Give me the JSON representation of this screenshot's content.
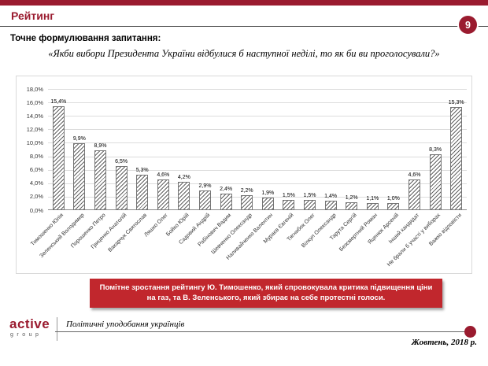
{
  "slide": {
    "title": "Рейтинг",
    "page_number": "9",
    "question_label": "Точне формулювання запитання:",
    "question_text": "«Якби вибори Президента України відбулися б наступної неділі, то як би ви проголосували?»",
    "callout": "Помітне зростання рейтингу Ю. Тимошенко, який спровокувала критика підвищення ціни на газ, та В. Зеленського, який збирає на себе протестні голоси.",
    "footer": {
      "logo_line1": "active",
      "logo_line2": "group",
      "tagline": "Політичні уподобання українців",
      "date": "Жовтень, 2018 р."
    },
    "colors": {
      "maroon": "#9A1B2F",
      "banner_red": "#C1272D"
    }
  },
  "chart_data": {
    "type": "bar",
    "title": "",
    "xlabel": "",
    "ylabel": "",
    "grid": true,
    "legend": false,
    "bar_style": "diagonal-hatch",
    "ylim": [
      0,
      18
    ],
    "ytick_step": 2,
    "ytick_labels": [
      "0,0%",
      "2,0%",
      "4,0%",
      "6,0%",
      "8,0%",
      "10,0%",
      "12,0%",
      "14,0%",
      "16,0%",
      "18,0%"
    ],
    "categories": [
      "Тимошенко Юлія",
      "Зеленський Володимир",
      "Порошенко Петро",
      "Гриценко Анатолій",
      "Вакарчук Святослав",
      "Ляшко Олег",
      "Бойко Юрій",
      "Садовий Андрій",
      "Рабінович Вадим",
      "Шевченко Олександр",
      "Наливайченко Валентин",
      "Мураєв Євгеній",
      "Тягнибок Олег",
      "Вілкул Олександр",
      "Тарута Сергій",
      "Безсмертний Роман",
      "Яценюк Арсеній",
      "Інший кандидат",
      "Не брали б участі у виборах",
      "Важко відповісти"
    ],
    "values": [
      15.4,
      9.9,
      8.9,
      6.5,
      5.3,
      4.6,
      4.2,
      2.9,
      2.4,
      2.2,
      1.9,
      1.5,
      1.5,
      1.4,
      1.2,
      1.1,
      1.0,
      4.6,
      8.3,
      15.3
    ],
    "value_labels": [
      "15,4%",
      "9,9%",
      "8,9%",
      "6,5%",
      "5,3%",
      "4,6%",
      "4,2%",
      "2,9%",
      "2,4%",
      "2,2%",
      "1,9%",
      "1,5%",
      "1,5%",
      "1,4%",
      "1,2%",
      "1,1%",
      "1,0%",
      "4,6%",
      "8,3%",
      "15,3%"
    ]
  }
}
